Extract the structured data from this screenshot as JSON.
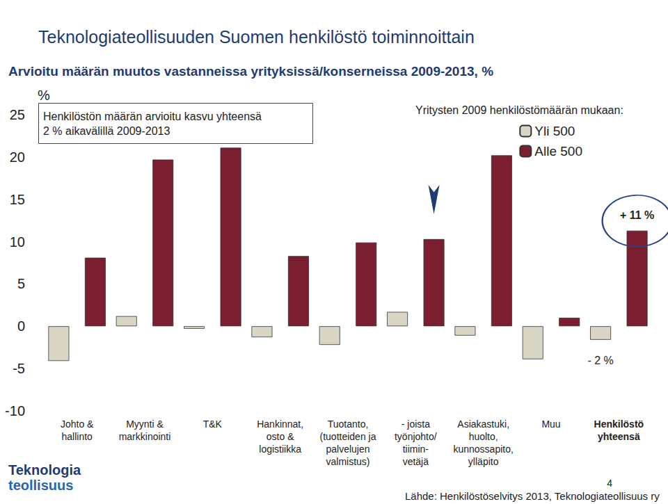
{
  "chart_data": {
    "type": "bar",
    "title": "Teknologiateollisuuden Suomen henkilöstö toiminnoittain",
    "subtitle": "Arvioitu määrän muutos vastanneissa yrityksissä/konserneissa 2009-2013, %",
    "y_label": "%",
    "categories": [
      "Johto &\nhallinto",
      "Myynti &\nmarkkinointi",
      "T&K",
      "Hankinnat,\nosto &\nlogistiikka",
      "Tuotanto,\n(tuotteiden ja\npalvelujen\nvalmistus)",
      "- joista\ntyönjohto/\ntiimin-\nvetäjä",
      "Asiakastuki,\nhuolto,\nkunnossapito,\nylläpito",
      "Muu",
      "Henkilöstö\nyhteensä"
    ],
    "series": [
      {
        "name": "Yli 500",
        "color": "#d9d6c6",
        "values": [
          -4.1,
          1.2,
          -0.3,
          -1.3,
          -2.2,
          1.7,
          -1.1,
          -3.9,
          -1.6
        ]
      },
      {
        "name": "Alle 500",
        "color": "#7b1f30",
        "values": [
          8.1,
          19.7,
          21.1,
          8.3,
          9.9,
          10.3,
          20.2,
          1.0,
          11.3
        ]
      }
    ],
    "ylim": [
      -10,
      25
    ],
    "yticks": [
      -10,
      -5,
      0,
      5,
      10,
      15,
      20,
      25
    ],
    "grid": false,
    "legend": "upper right",
    "legend_title": "Yritysten 2009 henkilöstömäärän mukaan:",
    "annotations": [
      {
        "text": "Henkilöstön määrän arvioitu kasvu yhteensä\n2 % aikavälillä 2009-2013"
      },
      {
        "text": "+ 11 %",
        "category": "Henkilöstö\nyhteensä",
        "series": "Alle 500"
      },
      {
        "text": "- 2 %",
        "category": "Henkilöstö\nyhteensä",
        "series": "Yli 500"
      }
    ],
    "source": "Lähde: Henkilöstöselvitys 2013, Teknologiateollisuus ry",
    "page_number": 4,
    "logo": [
      "Teknologia",
      "teollisuus"
    ]
  }
}
